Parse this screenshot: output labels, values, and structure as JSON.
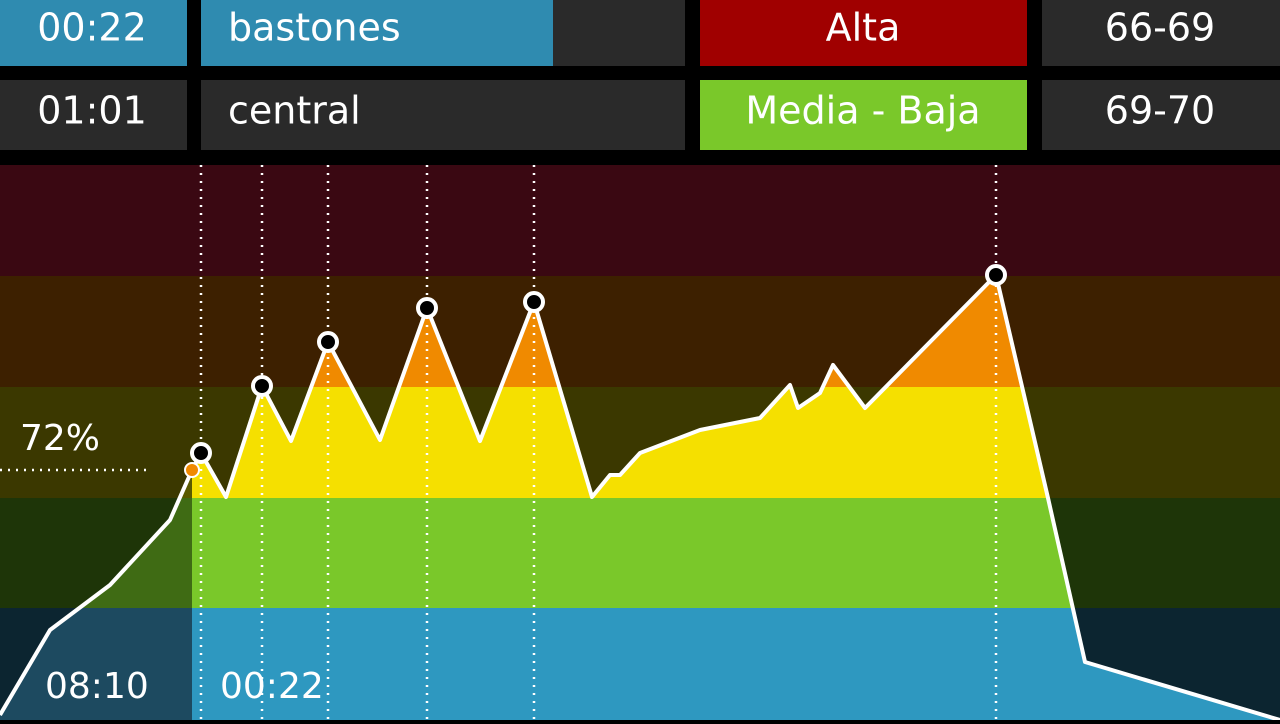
{
  "intervals": [
    {
      "time": "00:22",
      "name": "bastones",
      "intensity": "Alta",
      "cadence": "66-69"
    },
    {
      "time": "01:01",
      "name": "central",
      "intensity": "Media - Baja",
      "cadence": "69-70"
    }
  ],
  "chart": {
    "marker_label": "72%",
    "elapsed": "08:10",
    "remaining": "00:22"
  }
}
